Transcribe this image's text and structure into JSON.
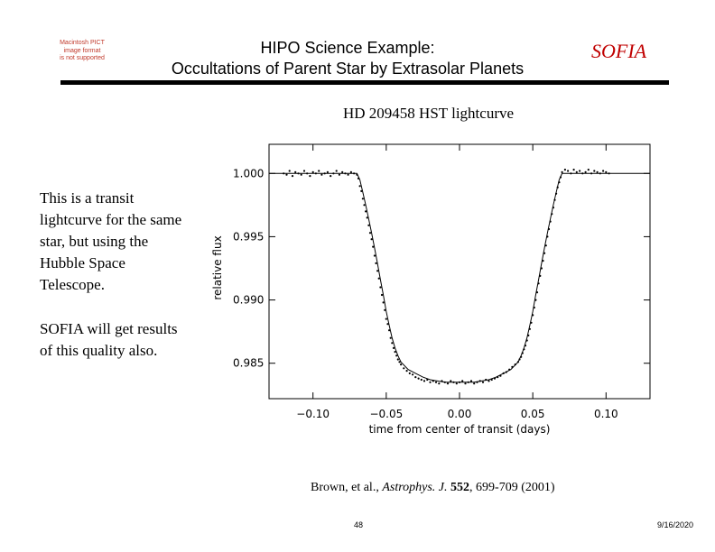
{
  "placeholder_image": {
    "lines": [
      "Macintosh PICT",
      "image format",
      "is not supported"
    ]
  },
  "header": {
    "title_line1": "HIPO Science Example:",
    "title_line2": "Occultations of Parent Star by Extrasolar Planets",
    "brand": "SOFIA",
    "brand_color": "#c00000"
  },
  "side_text": {
    "paragraph1": "This is a transit lightcurve for the same star, but using the Hubble Space Telescope.",
    "paragraph2": "SOFIA will get results of this quality also."
  },
  "chart_data": {
    "type": "scatter",
    "title": "HD 209458 HST lightcurve",
    "xlabel": "time from center of transit (days)",
    "ylabel": "relative flux",
    "xlim": [
      -0.13,
      0.13
    ],
    "ylim": [
      0.9822,
      1.0023
    ],
    "xticks": [
      -0.1,
      -0.05,
      0.0,
      0.05,
      0.1
    ],
    "xtick_labels": [
      "−0.10",
      "−0.05",
      "0.00",
      "0.05",
      "0.10"
    ],
    "yticks": [
      1.0,
      0.995,
      0.99,
      0.985
    ],
    "ytick_labels": [
      "1.000",
      "0.995",
      "0.990",
      "0.985"
    ],
    "grid": false,
    "model_curve": {
      "x": [
        -0.13,
        -0.07,
        -0.068,
        -0.066,
        -0.064,
        -0.062,
        -0.06,
        -0.058,
        -0.056,
        -0.054,
        -0.052,
        -0.05,
        -0.048,
        -0.046,
        -0.044,
        -0.042,
        -0.04,
        -0.035,
        -0.03,
        -0.025,
        -0.02,
        -0.015,
        -0.01,
        -0.005,
        0.0,
        0.005,
        0.01,
        0.015,
        0.02,
        0.025,
        0.03,
        0.035,
        0.04,
        0.042,
        0.044,
        0.046,
        0.048,
        0.05,
        0.052,
        0.054,
        0.056,
        0.058,
        0.06,
        0.062,
        0.064,
        0.066,
        0.068,
        0.07,
        0.13
      ],
      "y": [
        1.0,
        1.0,
        0.9995,
        0.9985,
        0.9975,
        0.9964,
        0.9953,
        0.9941,
        0.9929,
        0.9916,
        0.9904,
        0.9891,
        0.988,
        0.987,
        0.9862,
        0.9856,
        0.9851,
        0.9845,
        0.9842,
        0.9839,
        0.9837,
        0.9836,
        0.9835,
        0.9835,
        0.9835,
        0.9835,
        0.9835,
        0.9836,
        0.9837,
        0.9839,
        0.9842,
        0.9845,
        0.9851,
        0.9856,
        0.9862,
        0.987,
        0.988,
        0.9891,
        0.9904,
        0.9916,
        0.9929,
        0.9941,
        0.9953,
        0.9964,
        0.9975,
        0.9985,
        0.9995,
        1.0,
        1.0
      ]
    },
    "points_x": [
      -0.12,
      -0.118,
      -0.116,
      -0.114,
      -0.112,
      -0.11,
      -0.108,
      -0.106,
      -0.104,
      -0.102,
      -0.1,
      -0.098,
      -0.096,
      -0.094,
      -0.092,
      -0.09,
      -0.088,
      -0.086,
      -0.084,
      -0.082,
      -0.08,
      -0.078,
      -0.076,
      -0.074,
      -0.072,
      -0.07,
      -0.069,
      -0.068,
      -0.067,
      -0.066,
      -0.065,
      -0.064,
      -0.063,
      -0.062,
      -0.061,
      -0.06,
      -0.059,
      -0.058,
      -0.057,
      -0.056,
      -0.055,
      -0.054,
      -0.053,
      -0.052,
      -0.051,
      -0.05,
      -0.049,
      -0.048,
      -0.047,
      -0.046,
      -0.045,
      -0.044,
      -0.043,
      -0.042,
      -0.041,
      -0.04,
      -0.038,
      -0.036,
      -0.034,
      -0.032,
      -0.03,
      -0.028,
      -0.026,
      -0.024,
      -0.022,
      -0.02,
      -0.018,
      -0.016,
      -0.014,
      -0.012,
      -0.01,
      -0.008,
      -0.006,
      -0.004,
      -0.002,
      0.0,
      0.002,
      0.004,
      0.006,
      0.008,
      0.01,
      0.012,
      0.014,
      0.016,
      0.018,
      0.02,
      0.022,
      0.024,
      0.026,
      0.028,
      0.03,
      0.032,
      0.034,
      0.036,
      0.038,
      0.04,
      0.041,
      0.042,
      0.043,
      0.044,
      0.045,
      0.046,
      0.047,
      0.048,
      0.049,
      0.05,
      0.051,
      0.052,
      0.053,
      0.054,
      0.055,
      0.056,
      0.057,
      0.058,
      0.059,
      0.06,
      0.061,
      0.062,
      0.063,
      0.064,
      0.065,
      0.066,
      0.067,
      0.068,
      0.069,
      0.07,
      0.072,
      0.074,
      0.076,
      0.078,
      0.08,
      0.082,
      0.084,
      0.086,
      0.088,
      0.09,
      0.092,
      0.094,
      0.096,
      0.098,
      0.1,
      0.102
    ],
    "points_y": [
      1.0,
      0.9999,
      1.0002,
      0.9998,
      1.0001,
      1.0,
      0.9999,
      1.0002,
      1.0,
      0.9998,
      1.0001,
      1.0,
      1.0002,
      0.9999,
      1.0,
      1.0001,
      0.9998,
      1.0,
      1.0002,
      0.9999,
      1.0001,
      1.0,
      0.9999,
      1.0001,
      1.0,
      0.9999,
      0.9996,
      0.999,
      0.9986,
      0.998,
      0.9975,
      0.997,
      0.9965,
      0.9959,
      0.9953,
      0.9948,
      0.9942,
      0.9935,
      0.9929,
      0.9923,
      0.9917,
      0.991,
      0.9904,
      0.9898,
      0.9892,
      0.9885,
      0.9881,
      0.9876,
      0.987,
      0.9866,
      0.9862,
      0.9859,
      0.9856,
      0.9853,
      0.9851,
      0.9849,
      0.9846,
      0.9844,
      0.9842,
      0.9841,
      0.9839,
      0.9838,
      0.9837,
      0.9836,
      0.9837,
      0.9835,
      0.9836,
      0.9835,
      0.9834,
      0.9836,
      0.9835,
      0.9834,
      0.9836,
      0.9835,
      0.9834,
      0.9835,
      0.9836,
      0.9834,
      0.9835,
      0.9836,
      0.9834,
      0.9835,
      0.9836,
      0.9835,
      0.9837,
      0.9836,
      0.9837,
      0.9838,
      0.9839,
      0.984,
      0.9842,
      0.9843,
      0.9845,
      0.9847,
      0.9849,
      0.9851,
      0.9853,
      0.9855,
      0.9858,
      0.9861,
      0.9864,
      0.9868,
      0.9872,
      0.9877,
      0.9882,
      0.9888,
      0.9894,
      0.99,
      0.9906,
      0.9913,
      0.9919,
      0.9925,
      0.9931,
      0.9937,
      0.9943,
      0.995,
      0.9956,
      0.9962,
      0.9968,
      0.9973,
      0.9979,
      0.9984,
      0.9989,
      0.9993,
      0.9997,
      1.0001,
      1.0003,
      1.0002,
      1.0,
      1.0003,
      1.0001,
      1.0002,
      1.0,
      1.0001,
      1.0003,
      1.0,
      1.0002,
      1.0001,
      1.0,
      1.0002,
      1.0001,
      1.0
    ]
  },
  "citation": {
    "authors": "Brown, et al., ",
    "journal": "Astrophys. J.",
    "volume": "552",
    "pages": ", 699-709 (2001)"
  },
  "footer": {
    "page_number": "48",
    "date": "9/16/2020"
  }
}
